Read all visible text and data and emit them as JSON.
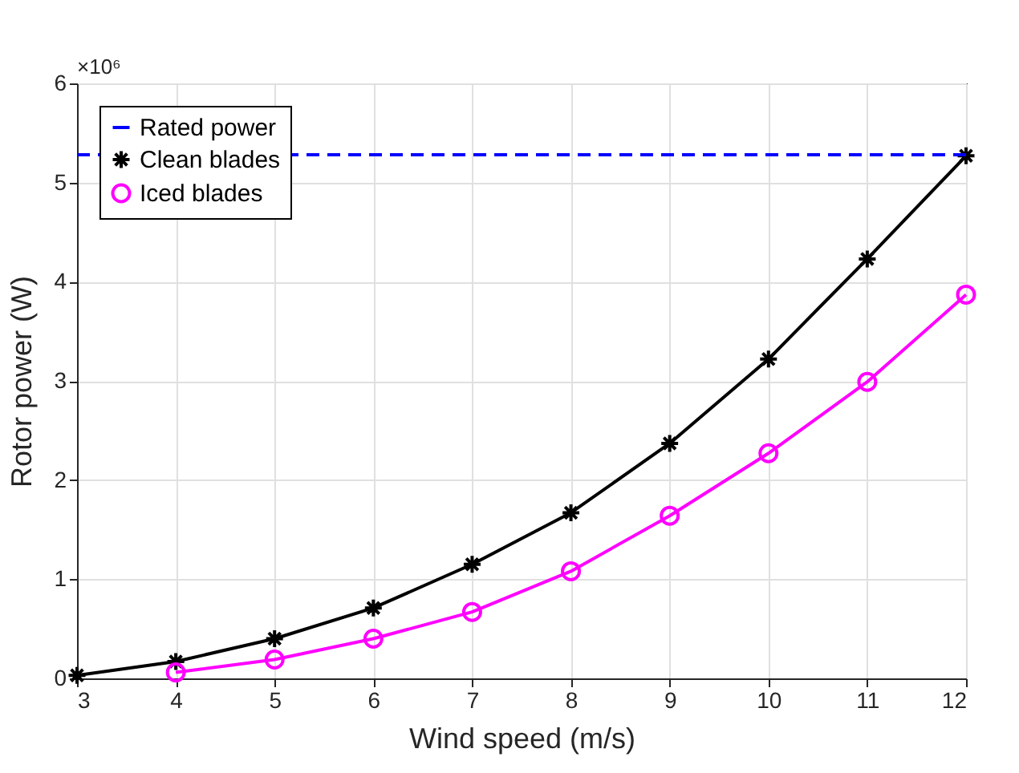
{
  "chart_data": {
    "type": "line",
    "xlabel": "Wind speed (m/s)",
    "ylabel": "Rotor power (W)",
    "annotations": [
      "×10⁶"
    ],
    "x": [
      3,
      4,
      5,
      6,
      7,
      8,
      9,
      10,
      11,
      12
    ],
    "series": [
      {
        "name": "Clean blades",
        "color": "#000000",
        "marker": "cross",
        "values": [
          0.03,
          0.17,
          0.4,
          0.71,
          1.15,
          1.67,
          2.37,
          3.22,
          4.23,
          5.27
        ]
      },
      {
        "name": "Iced blades",
        "color": "#ff00ff",
        "marker": "circle",
        "values": [
          null,
          0.06,
          0.19,
          0.4,
          0.67,
          1.08,
          1.64,
          2.27,
          2.99,
          3.87
        ]
      }
    ],
    "ref_lines": [
      {
        "axis": "y",
        "value": 5.28,
        "label": "Rated power",
        "color": "#0000ff",
        "line_style": "dashed"
      }
    ],
    "xlim": [
      3,
      12
    ],
    "xticks": [
      3,
      4,
      5,
      6,
      7,
      8,
      9,
      10,
      11,
      12
    ],
    "ylim": [
      0,
      6
    ],
    "yticks": [
      0,
      1,
      2,
      3,
      4,
      5,
      6
    ],
    "grid": true,
    "legend": "top left"
  }
}
